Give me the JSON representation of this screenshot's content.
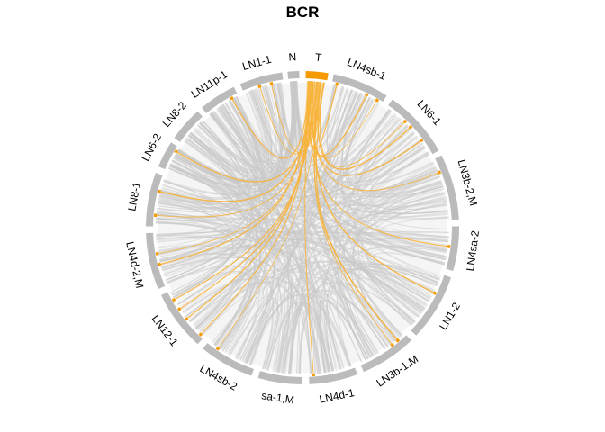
{
  "title": "BCR",
  "colors": {
    "sector_track": "#bbbbbb",
    "highlight": "#f59a00",
    "highlight_link": "#f7b23a",
    "grey_link": "#c9c9c9",
    "background": "#ffffff"
  },
  "sectors": [
    {
      "label": "N",
      "highlight": false
    },
    {
      "label": "T",
      "highlight": true
    },
    {
      "label": "LN4sb-1",
      "highlight": false
    },
    {
      "label": "LN6-1",
      "highlight": false
    },
    {
      "label": "LN3b-2,M",
      "highlight": false
    },
    {
      "label": "LN4sa-2",
      "highlight": false
    },
    {
      "label": "LN1-2",
      "highlight": false
    },
    {
      "label": "LN3b-1,M",
      "highlight": false
    },
    {
      "label": "LN4d-1",
      "highlight": false
    },
    {
      "label": "sa-1,M",
      "highlight": false
    },
    {
      "label": "LN4sb-2",
      "highlight": false
    },
    {
      "label": "LN12-1",
      "highlight": false
    },
    {
      "label": "LN4d-2,M",
      "highlight": false
    },
    {
      "label": "LN8-1",
      "highlight": false
    },
    {
      "label": "LN6-2",
      "highlight": false
    },
    {
      "label": "LN8-2",
      "highlight": false
    },
    {
      "label": "LN11p-1",
      "highlight": false
    },
    {
      "label": "LN1-1",
      "highlight": false
    }
  ]
}
